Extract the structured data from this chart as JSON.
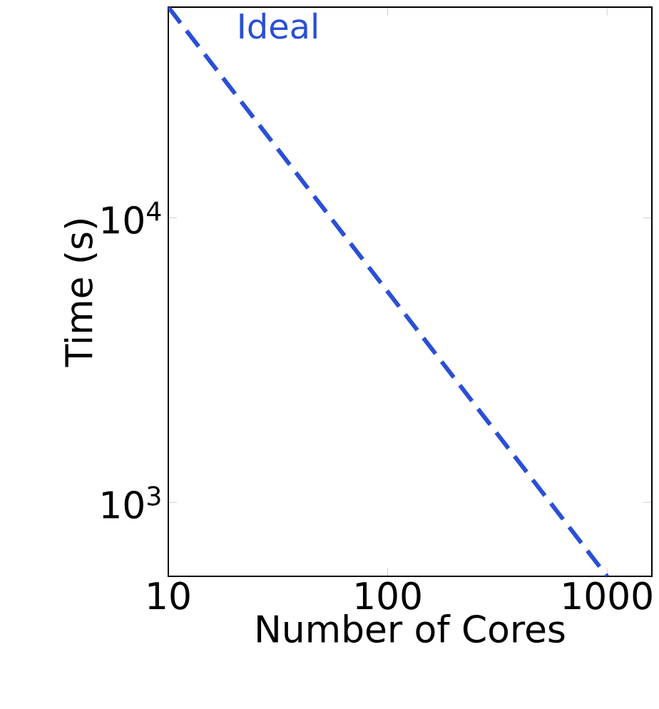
{
  "chart_data": {
    "type": "line",
    "xlabel": "Number of Cores",
    "ylabel": "Time (s)",
    "log": "xy",
    "xlim": [
      10,
      1600
    ],
    "ylim": [
      550,
      55000
    ],
    "xticks": [
      10,
      100,
      1000
    ],
    "yticks": [
      {
        "value": 1000,
        "label": "10$^{3}$"
      },
      {
        "value": 10000,
        "label": "10$^{4}$"
      }
    ],
    "grid": false,
    "line_style": "dashed",
    "marker": "none",
    "series": [
      {
        "name": "Ideal",
        "color": "#2a4fd6",
        "x": [
          10,
          1000
        ],
        "values": [
          55000,
          550
        ]
      }
    ]
  }
}
